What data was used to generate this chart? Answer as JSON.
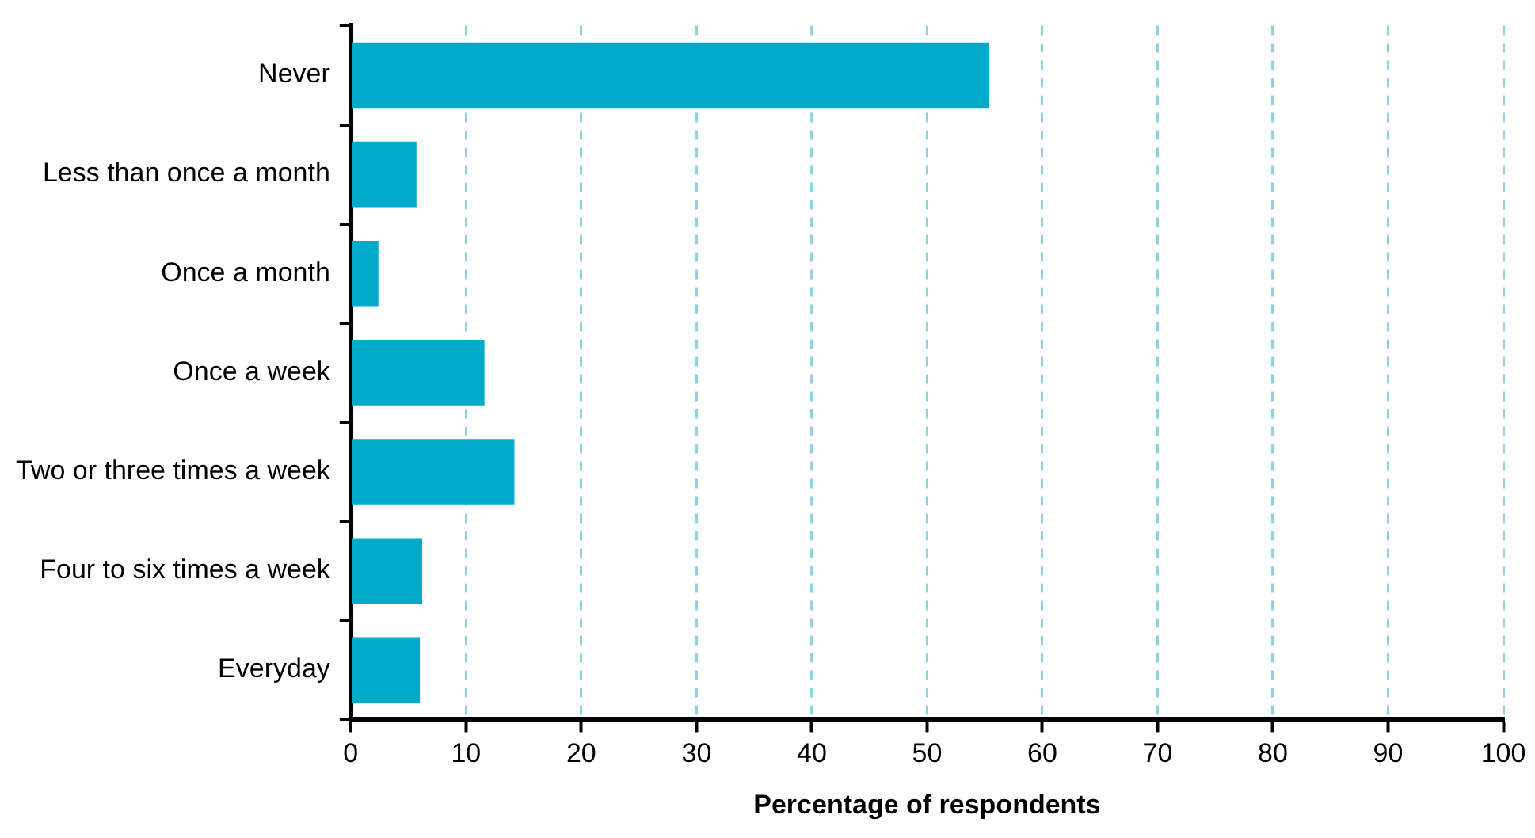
{
  "chart_data": {
    "type": "bar",
    "orientation": "horizontal",
    "xlabel": "Percentage of respondents",
    "categories": [
      "Never",
      "Less than once a month",
      "Once a month",
      "Once a week",
      "Two or three times a week",
      "Four to six times a week",
      "Everyday"
    ],
    "values": [
      55.4,
      5.7,
      2.4,
      11.6,
      14.2,
      6.2,
      6.0
    ],
    "color": "#00abc9",
    "xlim": [
      0,
      100
    ],
    "xticks": [
      0,
      10,
      20,
      30,
      40,
      50,
      60,
      70,
      80,
      90,
      100
    ],
    "grid": "x"
  }
}
